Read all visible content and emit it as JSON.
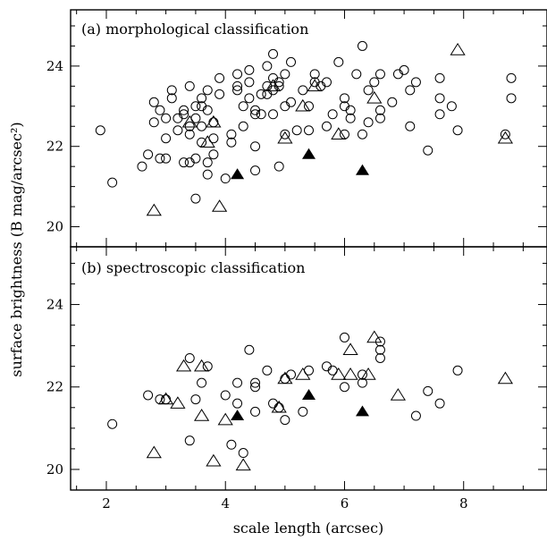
{
  "chart_data": [
    {
      "type": "scatter",
      "title": "(a) morphological classification",
      "xlabel": "scale length (arcsec)",
      "ylabel": "surface brightness (B mag/arcsec²)",
      "xlim": [
        1.4,
        9.4
      ],
      "ylim": [
        19.5,
        25.4
      ],
      "xticks": [
        2,
        4,
        6,
        8
      ],
      "yticks": [
        20,
        22,
        24
      ],
      "series": [
        {
          "marker": "open-circle",
          "points": [
            [
              1.9,
              22.4
            ],
            [
              2.1,
              21.1
            ],
            [
              2.6,
              21.5
            ],
            [
              2.7,
              21.8
            ],
            [
              2.8,
              22.6
            ],
            [
              2.8,
              23.1
            ],
            [
              2.9,
              21.7
            ],
            [
              2.9,
              22.9
            ],
            [
              3.0,
              21.7
            ],
            [
              3.0,
              22.2
            ],
            [
              3.0,
              22.7
            ],
            [
              3.1,
              23.2
            ],
            [
              3.1,
              23.4
            ],
            [
              3.2,
              22.7
            ],
            [
              3.2,
              22.4
            ],
            [
              3.3,
              21.6
            ],
            [
              3.3,
              22.8
            ],
            [
              3.3,
              22.9
            ],
            [
              3.4,
              23.5
            ],
            [
              3.4,
              21.6
            ],
            [
              3.4,
              22.3
            ],
            [
              3.4,
              22.5
            ],
            [
              3.5,
              21.7
            ],
            [
              3.5,
              22.7
            ],
            [
              3.5,
              23.0
            ],
            [
              3.5,
              20.7
            ],
            [
              3.6,
              22.1
            ],
            [
              3.6,
              22.5
            ],
            [
              3.6,
              23.0
            ],
            [
              3.6,
              23.2
            ],
            [
              3.7,
              22.9
            ],
            [
              3.7,
              23.4
            ],
            [
              3.7,
              21.6
            ],
            [
              3.7,
              21.3
            ],
            [
              3.8,
              21.8
            ],
            [
              3.8,
              22.2
            ],
            [
              3.8,
              22.6
            ],
            [
              3.9,
              23.3
            ],
            [
              3.9,
              23.7
            ],
            [
              4.0,
              21.2
            ],
            [
              4.1,
              22.1
            ],
            [
              4.1,
              22.3
            ],
            [
              4.2,
              23.5
            ],
            [
              4.2,
              23.8
            ],
            [
              4.2,
              23.4
            ],
            [
              4.3,
              22.5
            ],
            [
              4.3,
              23.0
            ],
            [
              4.4,
              23.6
            ],
            [
              4.4,
              23.9
            ],
            [
              4.4,
              23.2
            ],
            [
              4.5,
              21.4
            ],
            [
              4.5,
              22.0
            ],
            [
              4.5,
              22.8
            ],
            [
              4.5,
              22.9
            ],
            [
              4.6,
              23.3
            ],
            [
              4.6,
              22.8
            ],
            [
              4.7,
              23.3
            ],
            [
              4.7,
              23.5
            ],
            [
              4.7,
              24.0
            ],
            [
              4.8,
              23.4
            ],
            [
              4.8,
              23.7
            ],
            [
              4.8,
              24.3
            ],
            [
              4.8,
              22.8
            ],
            [
              4.9,
              21.5
            ],
            [
              4.9,
              23.5
            ],
            [
              4.9,
              23.6
            ],
            [
              5.0,
              22.3
            ],
            [
              5.0,
              23.0
            ],
            [
              5.0,
              23.8
            ],
            [
              5.1,
              24.1
            ],
            [
              5.1,
              23.1
            ],
            [
              5.2,
              22.4
            ],
            [
              5.3,
              23.4
            ],
            [
              5.4,
              22.4
            ],
            [
              5.4,
              23.0
            ],
            [
              5.5,
              23.6
            ],
            [
              5.5,
              23.8
            ],
            [
              5.6,
              23.5
            ],
            [
              5.7,
              22.5
            ],
            [
              5.7,
              23.6
            ],
            [
              5.8,
              22.8
            ],
            [
              5.9,
              24.1
            ],
            [
              6.0,
              22.3
            ],
            [
              6.0,
              23.2
            ],
            [
              6.0,
              23.0
            ],
            [
              6.1,
              22.7
            ],
            [
              6.1,
              22.9
            ],
            [
              6.2,
              23.8
            ],
            [
              6.3,
              24.5
            ],
            [
              6.3,
              22.3
            ],
            [
              6.4,
              23.4
            ],
            [
              6.4,
              22.6
            ],
            [
              6.5,
              23.6
            ],
            [
              6.6,
              23.8
            ],
            [
              6.6,
              22.7
            ],
            [
              6.6,
              22.9
            ],
            [
              6.8,
              23.1
            ],
            [
              6.9,
              23.8
            ],
            [
              7.0,
              23.9
            ],
            [
              7.1,
              23.4
            ],
            [
              7.1,
              22.5
            ],
            [
              7.2,
              23.6
            ],
            [
              7.4,
              21.9
            ],
            [
              7.6,
              23.2
            ],
            [
              7.6,
              23.7
            ],
            [
              7.6,
              22.8
            ],
            [
              7.8,
              23.0
            ],
            [
              7.9,
              22.4
            ],
            [
              8.7,
              22.3
            ],
            [
              8.8,
              23.7
            ],
            [
              8.8,
              23.2
            ]
          ]
        },
        {
          "marker": "open-triangle",
          "points": [
            [
              2.8,
              20.4
            ],
            [
              3.4,
              22.6
            ],
            [
              3.7,
              22.1
            ],
            [
              3.8,
              22.6
            ],
            [
              3.9,
              20.5
            ],
            [
              4.8,
              23.5
            ],
            [
              5.0,
              22.2
            ],
            [
              5.3,
              23.0
            ],
            [
              5.5,
              23.5
            ],
            [
              5.9,
              22.3
            ],
            [
              6.5,
              23.2
            ],
            [
              7.9,
              24.4
            ],
            [
              8.7,
              22.2
            ]
          ]
        },
        {
          "marker": "filled-triangle",
          "points": [
            [
              4.2,
              21.3
            ],
            [
              5.4,
              21.8
            ],
            [
              6.3,
              21.4
            ]
          ]
        }
      ]
    },
    {
      "type": "scatter",
      "title": "(b) spectroscopic classification",
      "xlabel": "scale length (arcsec)",
      "ylabel": "surface brightness (B mag/arcsec²)",
      "xlim": [
        1.4,
        9.4
      ],
      "ylim": [
        19.5,
        25.4
      ],
      "xticks": [
        2,
        4,
        6,
        8
      ],
      "yticks": [
        20,
        22,
        24
      ],
      "series": [
        {
          "marker": "open-circle",
          "points": [
            [
              2.1,
              21.1
            ],
            [
              2.7,
              21.8
            ],
            [
              2.9,
              21.7
            ],
            [
              3.0,
              21.7
            ],
            [
              3.4,
              20.7
            ],
            [
              3.4,
              22.7
            ],
            [
              3.5,
              21.7
            ],
            [
              3.6,
              22.1
            ],
            [
              3.7,
              22.5
            ],
            [
              4.0,
              21.8
            ],
            [
              4.1,
              20.6
            ],
            [
              4.2,
              22.1
            ],
            [
              4.2,
              21.6
            ],
            [
              4.3,
              20.4
            ],
            [
              4.4,
              22.9
            ],
            [
              4.5,
              21.4
            ],
            [
              4.5,
              22.0
            ],
            [
              4.5,
              22.1
            ],
            [
              4.7,
              22.4
            ],
            [
              4.8,
              21.6
            ],
            [
              4.9,
              21.5
            ],
            [
              5.0,
              21.2
            ],
            [
              5.0,
              22.2
            ],
            [
              5.1,
              22.3
            ],
            [
              5.3,
              21.4
            ],
            [
              5.4,
              22.4
            ],
            [
              5.7,
              22.5
            ],
            [
              5.8,
              22.4
            ],
            [
              6.0,
              23.2
            ],
            [
              6.0,
              22.0
            ],
            [
              6.3,
              22.3
            ],
            [
              6.3,
              22.1
            ],
            [
              6.6,
              23.1
            ],
            [
              6.6,
              22.9
            ],
            [
              6.6,
              22.7
            ],
            [
              7.4,
              21.9
            ],
            [
              7.2,
              21.3
            ],
            [
              7.6,
              21.6
            ],
            [
              7.9,
              22.4
            ]
          ]
        },
        {
          "marker": "open-triangle",
          "points": [
            [
              2.8,
              20.4
            ],
            [
              3.0,
              21.7
            ],
            [
              3.2,
              21.6
            ],
            [
              3.3,
              22.5
            ],
            [
              3.6,
              21.3
            ],
            [
              3.6,
              22.5
            ],
            [
              3.8,
              20.2
            ],
            [
              4.0,
              21.2
            ],
            [
              4.3,
              20.1
            ],
            [
              4.9,
              21.5
            ],
            [
              5.0,
              22.2
            ],
            [
              5.3,
              22.3
            ],
            [
              5.9,
              22.3
            ],
            [
              6.1,
              22.9
            ],
            [
              6.1,
              22.3
            ],
            [
              6.4,
              22.3
            ],
            [
              6.5,
              23.2
            ],
            [
              6.9,
              21.8
            ],
            [
              8.7,
              22.2
            ]
          ]
        },
        {
          "marker": "filled-triangle",
          "points": [
            [
              4.2,
              21.3
            ],
            [
              5.4,
              21.8
            ],
            [
              6.3,
              21.4
            ]
          ]
        }
      ]
    }
  ]
}
